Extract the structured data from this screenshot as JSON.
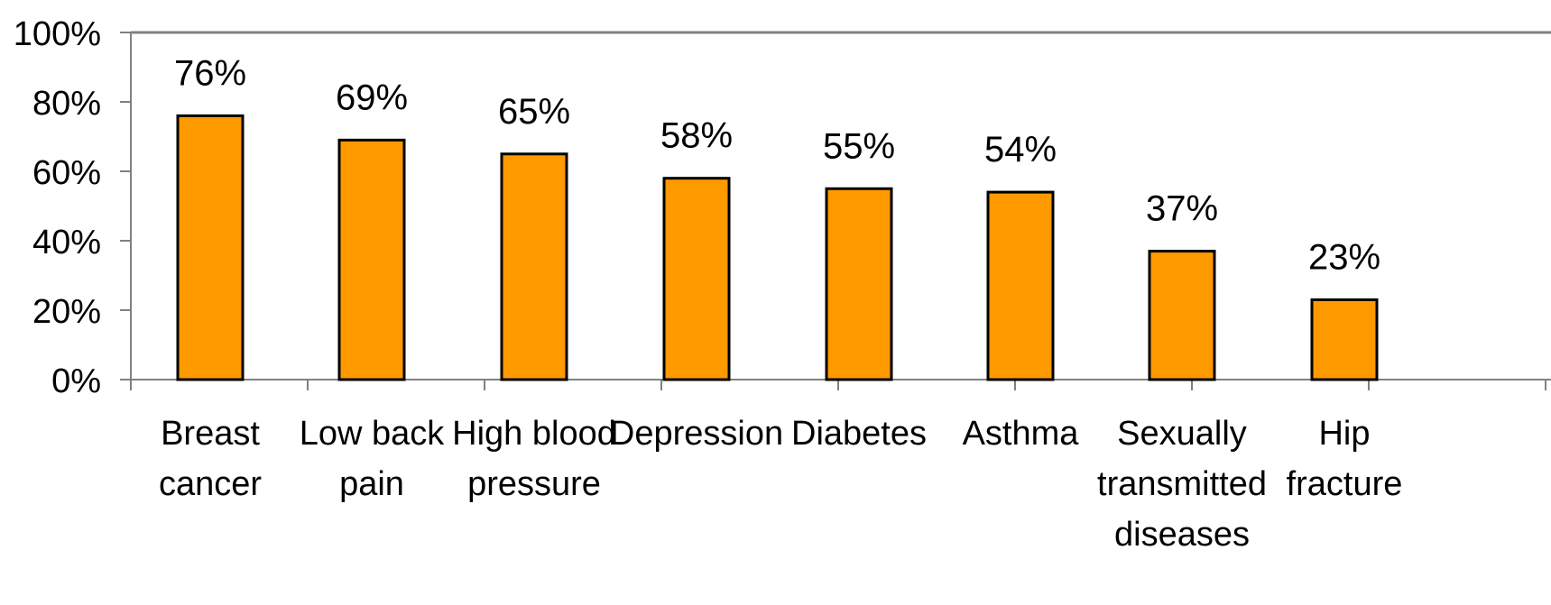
{
  "chart_data": {
    "type": "bar",
    "categories": [
      [
        "Breast",
        "cancer"
      ],
      [
        "Low  back",
        "pain"
      ],
      [
        "High blood",
        "pressure"
      ],
      [
        "Depression"
      ],
      [
        "Diabetes"
      ],
      [
        "Asthma"
      ],
      [
        "Sexually",
        "transmitted",
        "diseases"
      ],
      [
        "Hip",
        "fracture"
      ]
    ],
    "values": [
      76,
      69,
      65,
      58,
      55,
      54,
      37,
      23
    ],
    "data_labels": [
      "76%",
      "69%",
      "65%",
      "58%",
      "55%",
      "54%",
      "37%",
      "23%"
    ],
    "y_ticks": [
      {
        "value": 0,
        "label": "0%"
      },
      {
        "value": 20,
        "label": "20%"
      },
      {
        "value": 40,
        "label": "40%"
      },
      {
        "value": 60,
        "label": "60%"
      },
      {
        "value": 80,
        "label": "80%"
      },
      {
        "value": 100,
        "label": "100%"
      }
    ],
    "ylim": [
      0,
      100
    ],
    "title": "",
    "xlabel": "",
    "ylabel": "",
    "grid": false,
    "legend": "none",
    "colors": {
      "bar_fill": "#FF9900",
      "bar_stroke": "#000000",
      "axis": "#808080",
      "top_line": "#808080"
    }
  }
}
